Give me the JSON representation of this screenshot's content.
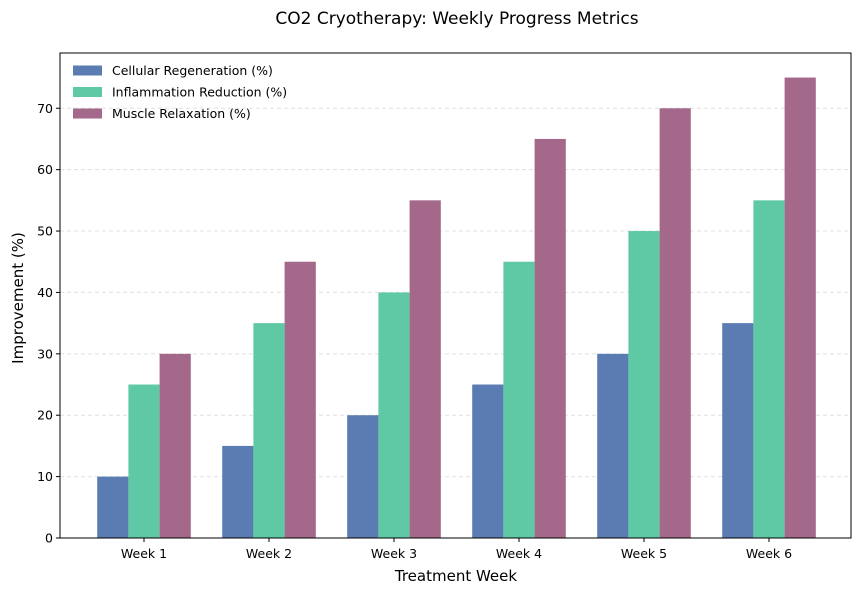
{
  "chart_data": {
    "type": "bar",
    "title": "CO2 Cryotherapy: Weekly Progress Metrics",
    "xlabel": "Treatment Week",
    "ylabel": "Improvement (%)",
    "categories": [
      "Week 1",
      "Week 2",
      "Week 3",
      "Week 4",
      "Week 5",
      "Week 6"
    ],
    "series": [
      {
        "name": "Cellular Regeneration (%)",
        "color": "#5b7cb2",
        "values": [
          10,
          15,
          20,
          25,
          30,
          35
        ]
      },
      {
        "name": "Inflammation Reduction (%)",
        "color": "#5fc9a6",
        "values": [
          25,
          35,
          40,
          45,
          50,
          55
        ]
      },
      {
        "name": "Muscle Relaxation (%)",
        "color": "#a3688a",
        "values": [
          30,
          45,
          55,
          65,
          70,
          75
        ]
      }
    ],
    "ylim": [
      0,
      79
    ],
    "yticks": [
      0,
      10,
      20,
      30,
      40,
      50,
      60,
      70
    ],
    "grid": "y dashed",
    "legend": "top-left"
  }
}
